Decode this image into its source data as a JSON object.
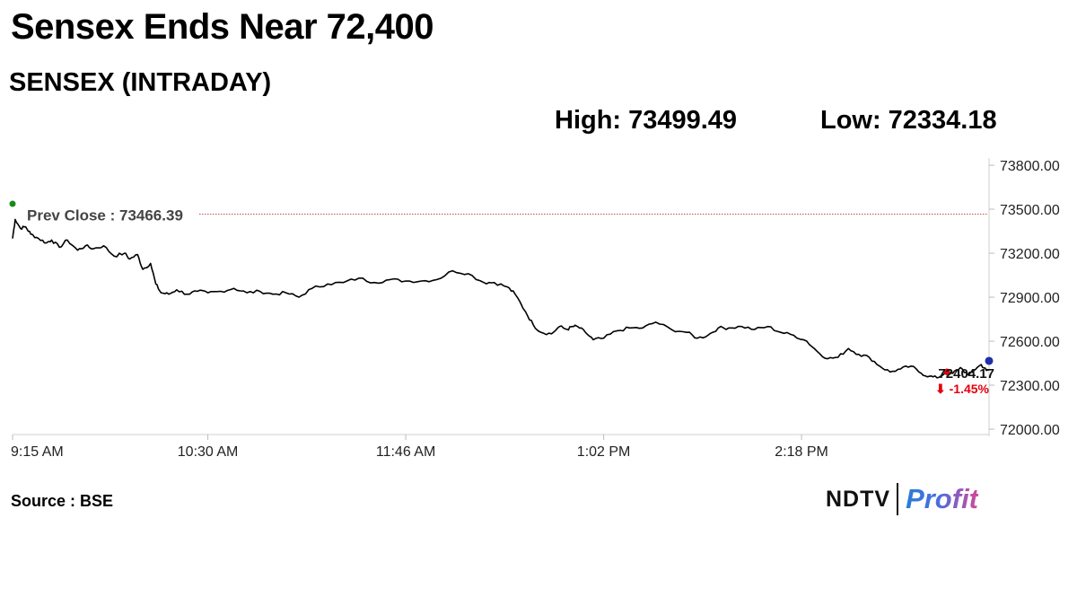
{
  "headline": "Sensex Ends Near 72,400",
  "subtitle": "SENSEX (INTRADAY)",
  "stats": {
    "high_label": "High:",
    "high_value": "73499.49",
    "low_label": "Low:",
    "low_value": "72334.18"
  },
  "source": "Source : BSE",
  "logo": {
    "brand": "NDTV",
    "product": "Profit"
  },
  "colors": {
    "line": "#000000",
    "prev_close": "#c0504d",
    "last_point": "#1f2fa8",
    "change_down": "#e3000f",
    "start_marker": "#1a8a1a"
  },
  "chart_data": {
    "type": "line",
    "title": "SENSEX (INTRADAY)",
    "x_ticks": [
      "9:15 AM",
      "10:30 AM",
      "11:46 AM",
      "1:02 PM",
      "2:18 PM"
    ],
    "x_tick_minutes": [
      555,
      630,
      706,
      782,
      858
    ],
    "x_range_minutes": [
      555,
      930
    ],
    "y_ticks": [
      "73800.00",
      "73500.00",
      "73200.00",
      "72900.00",
      "72600.00",
      "72300.00",
      "72000.00"
    ],
    "y_tick_values": [
      73800,
      73500,
      73200,
      72900,
      72600,
      72300,
      72000
    ],
    "ylim": [
      72000,
      73800
    ],
    "prev_close": {
      "label": "Prev Close : 73466.39",
      "value": 73466.39
    },
    "last": {
      "label": "72404.17",
      "value": 72404.17,
      "change": "⬇ -1.45%"
    },
    "series": [
      {
        "minute": [
          555,
          556,
          558,
          560,
          562,
          565,
          568,
          570,
          573,
          576,
          580,
          583,
          586,
          590,
          594,
          598,
          600,
          603,
          605,
          608,
          610,
          612,
          615,
          618,
          622,
          626,
          630,
          635,
          640,
          645,
          650,
          655,
          660,
          665,
          670,
          676,
          682,
          688,
          694,
          700,
          706,
          712,
          718,
          724,
          730,
          736,
          740,
          745,
          748,
          752,
          755,
          758,
          762,
          765,
          768,
          770,
          772,
          775,
          778,
          782,
          787,
          792,
          797,
          802,
          808,
          814,
          818,
          822,
          826,
          830,
          835,
          840,
          845,
          850,
          855,
          860,
          864,
          868,
          872,
          876,
          880,
          884,
          888,
          892,
          896,
          900,
          904,
          907,
          910,
          913,
          916,
          919,
          922,
          924,
          927,
          929,
          930
        ],
        "value": [
          73300,
          73430,
          73370,
          73380,
          73330,
          73300,
          73270,
          73290,
          73240,
          73290,
          73220,
          73250,
          73230,
          73250,
          73180,
          73200,
          73160,
          73190,
          73090,
          73130,
          72990,
          72930,
          72920,
          72950,
          72920,
          72940,
          72930,
          72940,
          72960,
          72930,
          72940,
          72920,
          72930,
          72900,
          72960,
          72990,
          73000,
          73030,
          73000,
          73020,
          73010,
          73010,
          73020,
          73080,
          73060,
          73000,
          73000,
          72970,
          72920,
          72800,
          72710,
          72660,
          72650,
          72700,
          72680,
          72700,
          72700,
          72660,
          72610,
          72620,
          72670,
          72690,
          72690,
          72730,
          72680,
          72660,
          72620,
          72640,
          72690,
          72690,
          72700,
          72680,
          72700,
          72660,
          72640,
          72600,
          72530,
          72480,
          72490,
          72550,
          72510,
          72490,
          72430,
          72390,
          72410,
          72430,
          72380,
          72360,
          72350,
          72380,
          72380,
          72420,
          72370,
          72400,
          72440,
          72400,
          72404.17
        ]
      }
    ]
  }
}
